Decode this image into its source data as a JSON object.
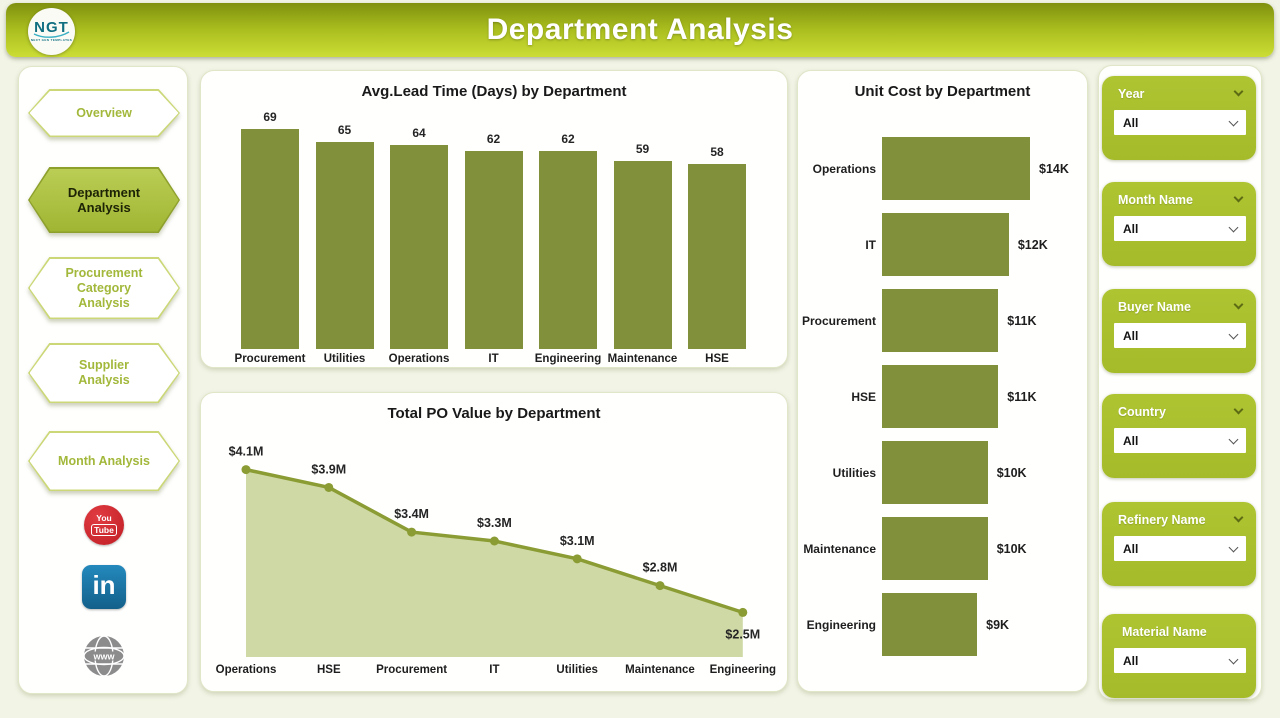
{
  "header": {
    "title": "Department Analysis",
    "logo": {
      "text": "NGT",
      "tagline": "NEXT GEN TEMPLATES"
    }
  },
  "sidebar": {
    "items": [
      {
        "label": "Overview",
        "active": false
      },
      {
        "label": "Department Analysis",
        "active": true
      },
      {
        "label": "Procurement Category Analysis",
        "active": false
      },
      {
        "label": "Supplier Analysis",
        "active": false
      },
      {
        "label": "Month Analysis",
        "active": false
      }
    ],
    "social": [
      {
        "name": "youtube",
        "line1": "You",
        "line2": "Tube"
      },
      {
        "name": "linkedin",
        "text": "in"
      },
      {
        "name": "website",
        "text": "www"
      }
    ]
  },
  "filters": [
    {
      "label": "Year",
      "value": "All"
    },
    {
      "label": "Month Name",
      "value": "All"
    },
    {
      "label": "Buyer Name",
      "value": "All"
    },
    {
      "label": "Country",
      "value": "All"
    },
    {
      "label": "Refinery Name",
      "value": "All"
    },
    {
      "label": "Material Name",
      "value": "All"
    }
  ],
  "chart_data": [
    {
      "type": "bar",
      "title": "Avg.Lead Time (Days) by Department",
      "categories": [
        "Procurement",
        "Utilities",
        "Operations",
        "IT",
        "Engineering",
        "Maintenance",
        "HSE"
      ],
      "values": [
        69,
        65,
        64,
        62,
        62,
        59,
        58
      ],
      "ylim": [
        0,
        69
      ],
      "grid": false,
      "data_labels": true,
      "bar_color": "#81903a"
    },
    {
      "type": "area",
      "title": "Total PO Value by Department",
      "categories": [
        "Operations",
        "HSE",
        "Procurement",
        "IT",
        "Utilities",
        "Maintenance",
        "Engineering"
      ],
      "values": [
        4.1,
        3.9,
        3.4,
        3.3,
        3.1,
        2.8,
        2.5
      ],
      "labels": [
        "$4.1M",
        "$3.9M",
        "$3.4M",
        "$3.3M",
        "$3.1M",
        "$2.8M",
        "$2.5M"
      ],
      "unit": "USD millions",
      "ylim": [
        2.0,
        4.6
      ],
      "grid": false,
      "data_labels": true,
      "line_color": "#8a9c33",
      "fill_color": "#cfd9a5"
    },
    {
      "type": "hbar",
      "title": "Unit Cost by Department",
      "categories": [
        "Operations",
        "IT",
        "Procurement",
        "HSE",
        "Utilities",
        "Maintenance",
        "Engineering"
      ],
      "values": [
        14,
        12,
        11,
        11,
        10,
        10,
        9
      ],
      "labels": [
        "$14K",
        "$12K",
        "$11K",
        "$11K",
        "$10K",
        "$10K",
        "$9K"
      ],
      "unit": "USD thousands",
      "xlim": [
        0,
        14
      ],
      "grid": false,
      "data_labels": true,
      "bar_color": "#81903a"
    }
  ]
}
